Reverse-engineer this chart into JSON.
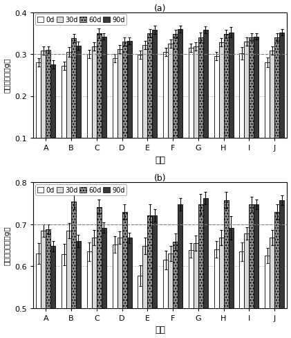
{
  "chart_a": {
    "title": "(a)",
    "ylabel": "蜗蚯均均量（g）",
    "xlabel": "处理",
    "ylim": [
      0.1,
      0.4
    ],
    "yticks": [
      0.1,
      0.2,
      0.3,
      0.4
    ],
    "dashed_line": 0.3,
    "categories": [
      "A",
      "B",
      "C",
      "D",
      "E",
      "F",
      "G",
      "H",
      "I",
      "J"
    ],
    "series": {
      "0d": [
        0.28,
        0.272,
        0.3,
        0.29,
        0.298,
        0.305,
        0.315,
        0.295,
        0.302,
        0.28
      ],
      "30d": [
        0.308,
        0.305,
        0.318,
        0.312,
        0.322,
        0.325,
        0.318,
        0.328,
        0.33,
        0.308
      ],
      "60d": [
        0.31,
        0.338,
        0.35,
        0.33,
        0.35,
        0.348,
        0.34,
        0.348,
        0.34,
        0.34
      ],
      "90d": [
        0.275,
        0.32,
        0.342,
        0.332,
        0.358,
        0.36,
        0.358,
        0.352,
        0.342,
        0.352
      ]
    },
    "errors": {
      "0d": [
        0.01,
        0.01,
        0.01,
        0.01,
        0.01,
        0.01,
        0.01,
        0.01,
        0.015,
        0.012
      ],
      "30d": [
        0.01,
        0.012,
        0.01,
        0.01,
        0.01,
        0.01,
        0.01,
        0.01,
        0.01,
        0.01
      ],
      "60d": [
        0.008,
        0.01,
        0.012,
        0.01,
        0.01,
        0.01,
        0.012,
        0.01,
        0.01,
        0.01
      ],
      "90d": [
        0.01,
        0.01,
        0.008,
        0.008,
        0.01,
        0.008,
        0.008,
        0.012,
        0.008,
        0.008
      ]
    }
  },
  "chart_b": {
    "title": "(b)",
    "ylabel": "蜗蚯均均重量（g）",
    "xlabel": "处理",
    "ylim": [
      0.5,
      0.8
    ],
    "yticks": [
      0.5,
      0.6,
      0.7,
      0.8
    ],
    "dashed_line": 0.7,
    "categories": [
      "A",
      "B",
      "C",
      "D",
      "E",
      "F",
      "G",
      "H",
      "I",
      "J"
    ],
    "series": {
      "0d": [
        0.63,
        0.628,
        0.635,
        0.652,
        0.578,
        0.615,
        0.638,
        0.64,
        0.635,
        0.625
      ],
      "30d": [
        0.685,
        0.685,
        0.668,
        0.668,
        0.648,
        0.63,
        0.655,
        0.668,
        0.678,
        0.668
      ],
      "60d": [
        0.688,
        0.755,
        0.742,
        0.73,
        0.722,
        0.658,
        0.748,
        0.758,
        0.748,
        0.73
      ],
      "90d": [
        0.648,
        0.66,
        0.692,
        0.668,
        0.722,
        0.748,
        0.762,
        0.692,
        0.748,
        0.758
      ]
    },
    "errors": {
      "0d": [
        0.025,
        0.025,
        0.022,
        0.02,
        0.025,
        0.022,
        0.018,
        0.02,
        0.022,
        0.018
      ],
      "30d": [
        0.015,
        0.018,
        0.018,
        0.015,
        0.02,
        0.018,
        0.018,
        0.018,
        0.015,
        0.018
      ],
      "60d": [
        0.012,
        0.018,
        0.018,
        0.018,
        0.025,
        0.02,
        0.025,
        0.02,
        0.018,
        0.018
      ],
      "90d": [
        0.012,
        0.015,
        0.012,
        0.012,
        0.015,
        0.015,
        0.015,
        0.028,
        0.012,
        0.012
      ]
    }
  },
  "bar_colors": [
    "#ffffff",
    "#d8d8d8",
    "#909090",
    "#383838"
  ],
  "bar_edge_colors": [
    "#000000",
    "#000000",
    "#000000",
    "#000000"
  ],
  "bar_hatches": [
    null,
    null,
    "....",
    null
  ],
  "legend_labels": [
    "0d",
    "30d",
    "60d",
    "90d"
  ],
  "background_color": "#ffffff",
  "grid_color": "#b0b0b0"
}
